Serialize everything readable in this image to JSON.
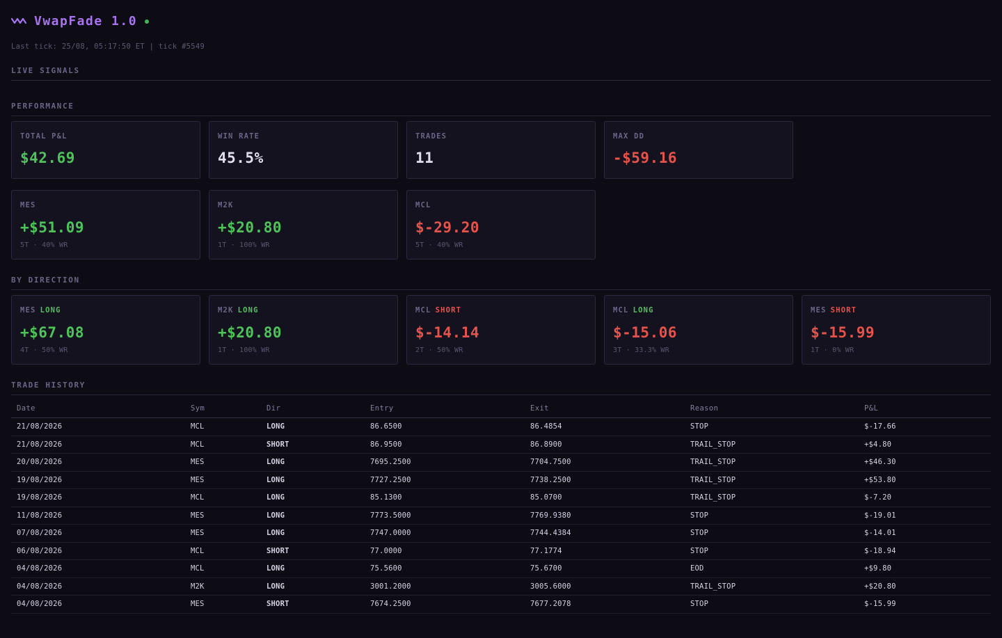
{
  "app": {
    "title": "VwapFade 1.0",
    "last_tick": "Last tick: 25/08, 05:17:50 ET | tick #5549",
    "accent_color": "#a874f0",
    "status_color": "#3fb950",
    "logo_icon": "wave-icon"
  },
  "sections": {
    "live_signals": "LIVE SIGNALS",
    "performance": "PERFORMANCE",
    "by_direction": "BY DIRECTION",
    "trade_history": "TRADE HISTORY"
  },
  "performance": {
    "summary": [
      {
        "label": "TOTAL P&L",
        "value": "$42.69",
        "tone": "pos"
      },
      {
        "label": "WIN RATE",
        "value": "45.5%",
        "tone": "neutral"
      },
      {
        "label": "TRADES",
        "value": "11",
        "tone": "neutral"
      },
      {
        "label": "MAX DD",
        "value": "-$59.16",
        "tone": "neg"
      }
    ],
    "by_symbol": [
      {
        "label": "MES",
        "value": "+$51.09",
        "tone": "pos",
        "sub": "5T · 40% WR"
      },
      {
        "label": "M2K",
        "value": "+$20.80",
        "tone": "pos",
        "sub": "1T · 100% WR"
      },
      {
        "label": "MCL",
        "value": "$-29.20",
        "tone": "neg",
        "sub": "5T · 40% WR"
      }
    ]
  },
  "by_direction": [
    {
      "sym": "MES",
      "dir": "LONG",
      "dir_tone": "long",
      "value": "+$67.08",
      "tone": "pos",
      "sub": "4T · 50% WR"
    },
    {
      "sym": "M2K",
      "dir": "LONG",
      "dir_tone": "long",
      "value": "+$20.80",
      "tone": "pos",
      "sub": "1T · 100% WR"
    },
    {
      "sym": "MCL",
      "dir": "SHORT",
      "dir_tone": "short",
      "value": "$-14.14",
      "tone": "neg",
      "sub": "2T · 50% WR"
    },
    {
      "sym": "MCL",
      "dir": "LONG",
      "dir_tone": "long",
      "value": "$-15.06",
      "tone": "neg",
      "sub": "3T · 33.3% WR"
    },
    {
      "sym": "MES",
      "dir": "SHORT",
      "dir_tone": "short",
      "value": "$-15.99",
      "tone": "neg",
      "sub": "1T · 0% WR"
    }
  ],
  "trade_history": {
    "columns": [
      "Date",
      "Sym",
      "Dir",
      "Entry",
      "Exit",
      "Reason",
      "P&L"
    ],
    "rows": [
      {
        "date": "21/08/2026",
        "sym": "MCL",
        "dir": "LONG",
        "entry": "86.6500",
        "exit": "86.4854",
        "reason": "STOP",
        "pnl": "$-17.66"
      },
      {
        "date": "21/08/2026",
        "sym": "MCL",
        "dir": "SHORT",
        "entry": "86.9500",
        "exit": "86.8900",
        "reason": "TRAIL_STOP",
        "pnl": "+$4.80"
      },
      {
        "date": "20/08/2026",
        "sym": "MES",
        "dir": "LONG",
        "entry": "7695.2500",
        "exit": "7704.7500",
        "reason": "TRAIL_STOP",
        "pnl": "+$46.30"
      },
      {
        "date": "19/08/2026",
        "sym": "MES",
        "dir": "LONG",
        "entry": "7727.2500",
        "exit": "7738.2500",
        "reason": "TRAIL_STOP",
        "pnl": "+$53.80"
      },
      {
        "date": "19/08/2026",
        "sym": "MCL",
        "dir": "LONG",
        "entry": "85.1300",
        "exit": "85.0700",
        "reason": "TRAIL_STOP",
        "pnl": "$-7.20"
      },
      {
        "date": "11/08/2026",
        "sym": "MES",
        "dir": "LONG",
        "entry": "7773.5000",
        "exit": "7769.9380",
        "reason": "STOP",
        "pnl": "$-19.01"
      },
      {
        "date": "07/08/2026",
        "sym": "MES",
        "dir": "LONG",
        "entry": "7747.0000",
        "exit": "7744.4384",
        "reason": "STOP",
        "pnl": "$-14.01"
      },
      {
        "date": "06/08/2026",
        "sym": "MCL",
        "dir": "SHORT",
        "entry": "77.0000",
        "exit": "77.1774",
        "reason": "STOP",
        "pnl": "$-18.94"
      },
      {
        "date": "04/08/2026",
        "sym": "MCL",
        "dir": "LONG",
        "entry": "75.5600",
        "exit": "75.6700",
        "reason": "EOD",
        "pnl": "+$9.80"
      },
      {
        "date": "04/08/2026",
        "sym": "M2K",
        "dir": "LONG",
        "entry": "3001.2000",
        "exit": "3005.6000",
        "reason": "TRAIL_STOP",
        "pnl": "+$20.80"
      },
      {
        "date": "04/08/2026",
        "sym": "MES",
        "dir": "SHORT",
        "entry": "7674.2500",
        "exit": "7677.2078",
        "reason": "STOP",
        "pnl": "$-15.99"
      }
    ]
  }
}
